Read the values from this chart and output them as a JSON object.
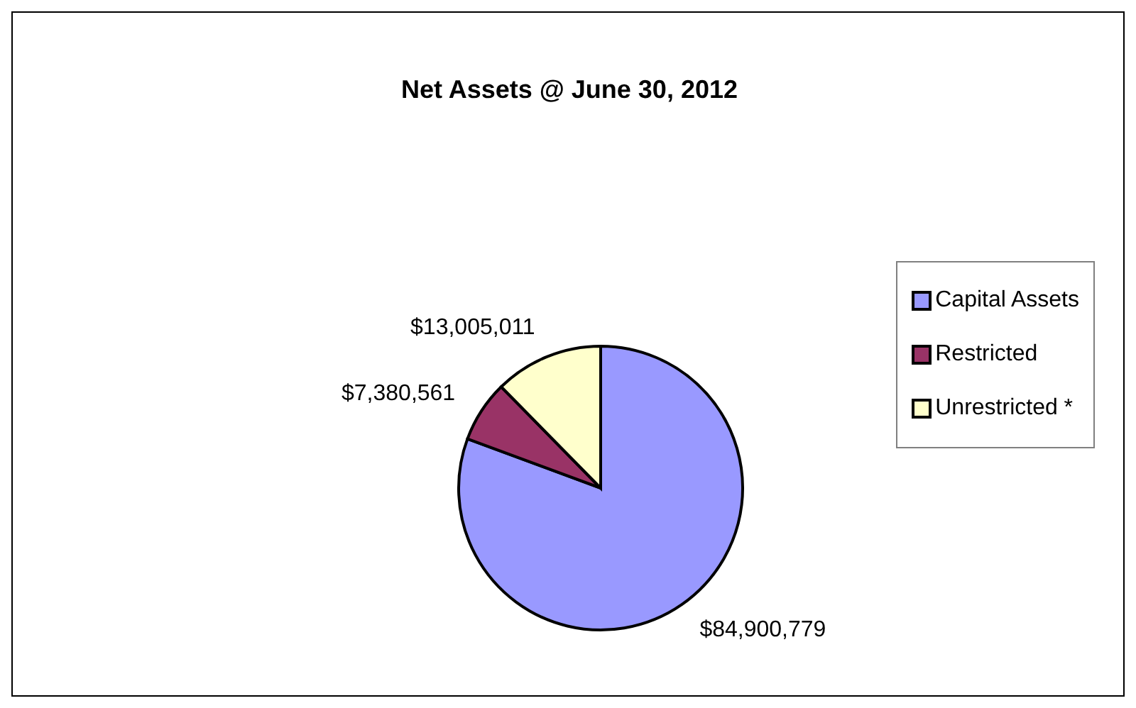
{
  "chart_data": {
    "type": "pie",
    "title": "Net Assets @ June 30, 2012",
    "categories": [
      "Capital Assets",
      "Restricted",
      "Unrestricted *"
    ],
    "values": [
      84900779,
      7380561,
      13005011
    ],
    "colors": [
      "#9999ff",
      "#993366",
      "#ffffcc"
    ],
    "value_labels": [
      "$84,900,779",
      "$7,380,561",
      "$13,005,011"
    ],
    "legend": "right"
  }
}
